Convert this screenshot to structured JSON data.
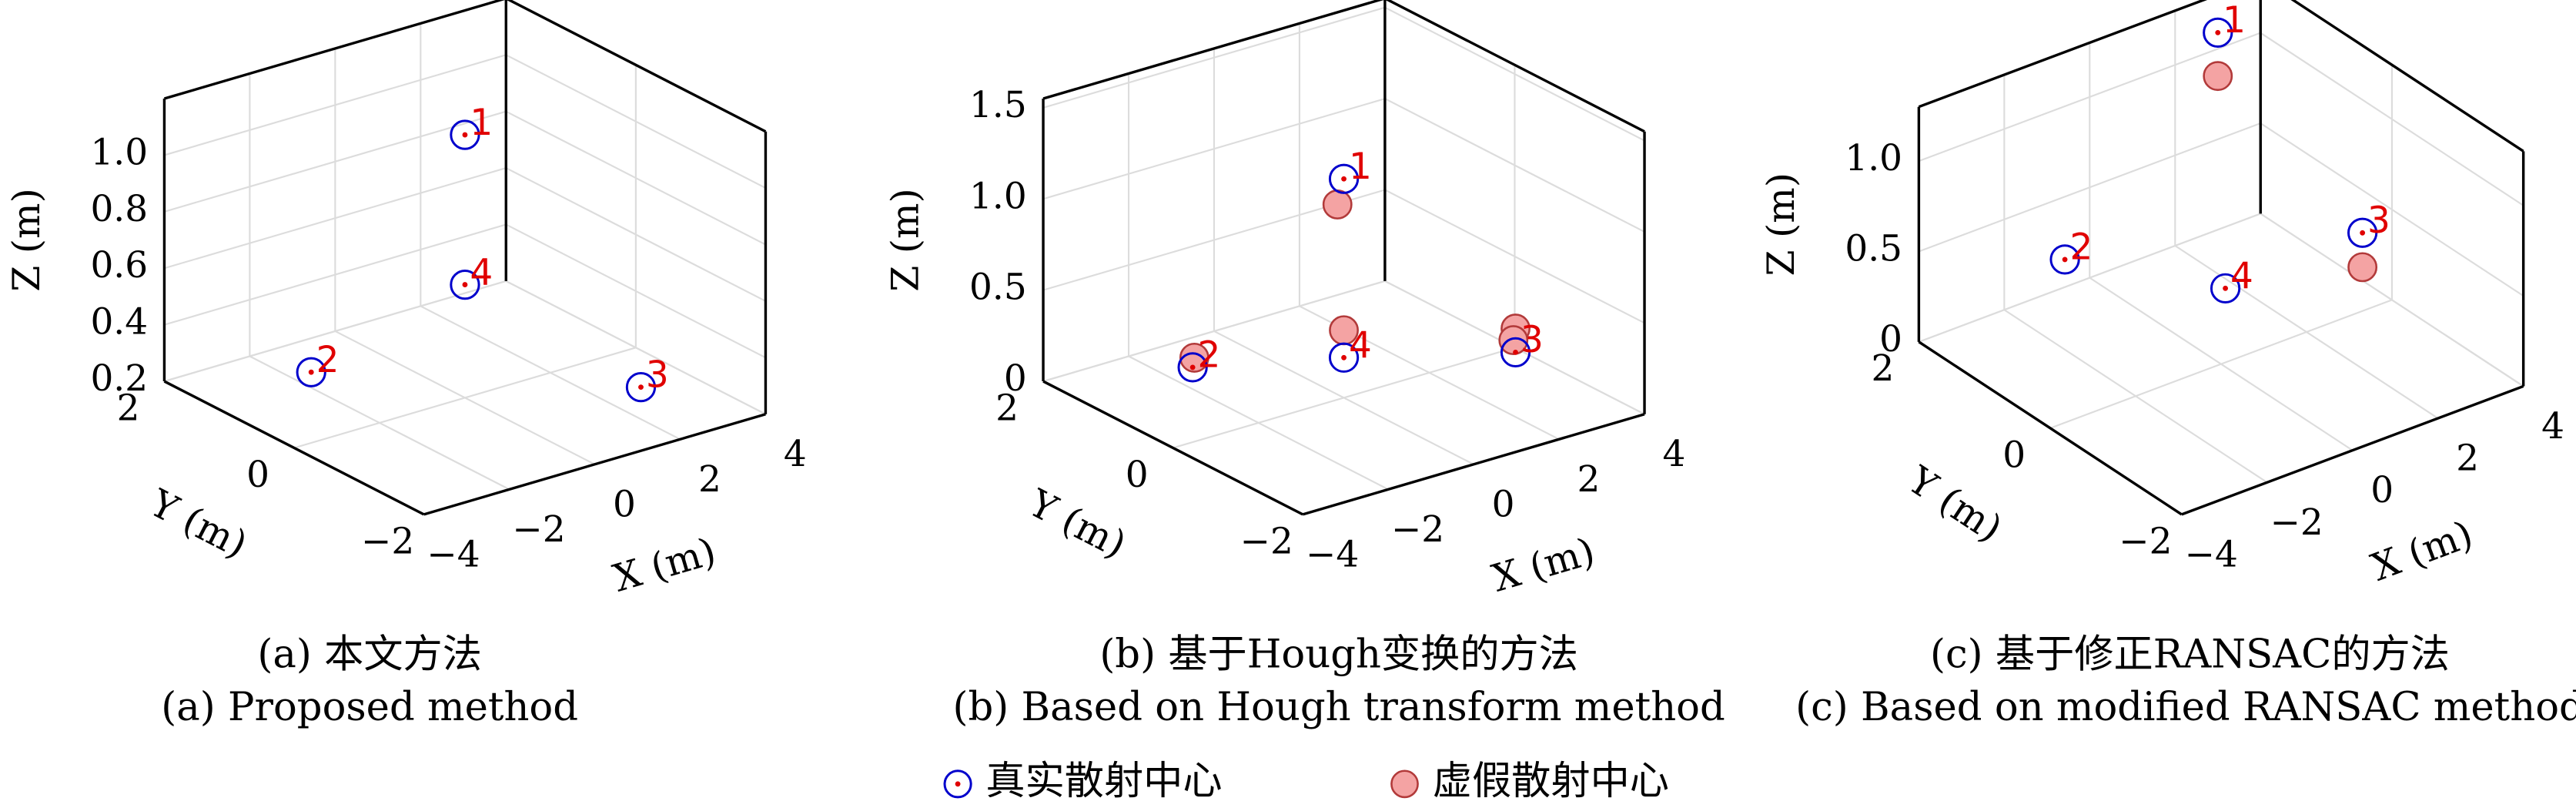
{
  "chart_data": [
    {
      "type": "scatter3d",
      "caption": "(a) 本文方法",
      "caption_en": "(a) Proposed method",
      "xlabel": "X (m)",
      "ylabel": "Y (m)",
      "zlabel": "Z (m)",
      "xlim": [
        -4,
        4
      ],
      "ylim": [
        -2,
        2
      ],
      "zlim": [
        0.2,
        1.2
      ],
      "xticks": [
        {
          "value": -4,
          "label": "−4"
        },
        {
          "value": -2,
          "label": "−2"
        },
        0,
        2,
        4
      ],
      "yticks": [
        {
          "value": -2,
          "label": "−2"
        },
        0,
        2
      ],
      "zticks": [
        0.2,
        0.4,
        0.6,
        0.8,
        {
          "value": 1.0,
          "label": "1.0"
        }
      ],
      "grid": true,
      "series": [
        {
          "x": [
            0,
            -3.6,
            2.6,
            0
          ],
          "y": [
            0,
            0,
            -1,
            0
          ],
          "z": [
            1.13,
            0.45,
            0.24,
            0.6
          ],
          "labels": [
            "1",
            "2",
            "3",
            "4"
          ]
        },
        {
          "x": [],
          "y": [],
          "z": []
        }
      ]
    },
    {
      "type": "scatter3d",
      "caption": "(b) 基于Hough变换的方法",
      "caption_en": "(b) Based on Hough transform method",
      "xlabel": "X (m)",
      "ylabel": "Y (m)",
      "zlabel": "Z (m)",
      "xlim": [
        -4,
        4
      ],
      "ylim": [
        -2,
        2
      ],
      "zlim": [
        0,
        1.55
      ],
      "xticks": [
        {
          "value": -4,
          "label": "−4"
        },
        {
          "value": -2,
          "label": "−2"
        },
        0,
        2,
        4
      ],
      "yticks": [
        {
          "value": -2,
          "label": "−2"
        },
        0,
        2
      ],
      "zticks": [
        0,
        0.5,
        {
          "value": 1.0,
          "label": "1.0"
        },
        1.5
      ],
      "grid": true,
      "series": [
        {
          "x": [
            0,
            -3.54,
            2.5,
            0
          ],
          "y": [
            0,
            0,
            -1,
            0
          ],
          "z": [
            1.2,
            0.41,
            0.26,
            0.22
          ],
          "labels": [
            "1",
            "2",
            "3",
            "4"
          ]
        },
        {
          "x": [
            -0.15,
            -3.5,
            2.5,
            2.45,
            0
          ],
          "y": [
            0,
            0,
            -1,
            -1,
            0
          ],
          "z": [
            1.07,
            0.46,
            0.39,
            0.33,
            0.37
          ]
        }
      ]
    },
    {
      "type": "scatter3d",
      "caption": "(c) 基于修正RANSAC的方法",
      "caption_en": "(c) Based on modified RANSAC method",
      "xlabel": "X (m)",
      "ylabel": "Y (m)",
      "zlabel": "Z (m)",
      "xlim": [
        -4,
        4
      ],
      "ylim": [
        -2,
        2
      ],
      "zlim": [
        0,
        1.3
      ],
      "xticks": [
        {
          "value": -4,
          "label": "−4"
        },
        {
          "value": -2,
          "label": "−2"
        },
        0,
        2,
        4
      ],
      "yticks": [
        {
          "value": -2,
          "label": "−2"
        },
        0,
        2
      ],
      "zticks": [
        0,
        0.5,
        {
          "value": 1.0,
          "label": "1.0"
        }
      ],
      "grid": true,
      "series": [
        {
          "x": [
            3,
            -1.35,
            2.54,
            0.1
          ],
          "y": [
            2,
            1.5,
            -0.5,
            0
          ],
          "z": [
            1.09,
            0.34,
            0.62,
            0.41
          ],
          "labels": [
            "1",
            "2",
            "3",
            "4"
          ]
        },
        {
          "x": [
            3,
            2.54
          ],
          "y": [
            2,
            -0.5
          ],
          "z": [
            0.85,
            0.43
          ]
        }
      ]
    }
  ],
  "legend": [
    {
      "name": "真实散射中心",
      "color": "#0000cc",
      "dot": "#e00000"
    },
    {
      "name": "虚假散射中心",
      "color": "#f4a3a3",
      "edge": "#b23a3a"
    }
  ]
}
